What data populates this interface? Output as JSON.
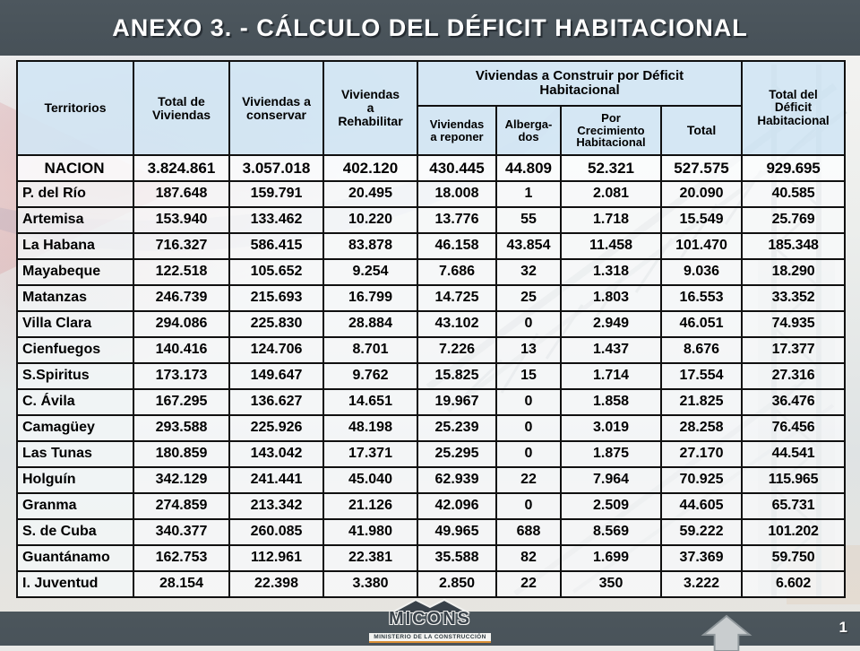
{
  "slide": {
    "title": "ANEXO 3. - CÁLCULO DEL DÉFICIT HABITACIONAL",
    "page_number": "1"
  },
  "footer_logo": {
    "name": "MICONS",
    "subtitle": "MINISTERIO DE LA CONSTRUCCIÓN"
  },
  "colors": {
    "band": "#49535a",
    "header_cell": "#d2e6f4",
    "accent_orange": "#d98f35",
    "title_text": "#ffffff"
  },
  "table": {
    "headers": {
      "territorios": "Territorios",
      "total_de_viviendas": "Total de\nViviendas",
      "viviendas_a_conservar": "Viviendas  a\nconservar",
      "viviendas_a_rehabilitar": "Viviendas\na\nRehabilitar",
      "construir_group": "Viviendas a Construir por Déficit\nHabitacional",
      "viviendas_a_reponer": "Viviendas\na reponer",
      "albergados": "Alberga-\ndos",
      "por_crecimiento": "Por\nCrecimiento\nHabitacional",
      "total": "Total",
      "total_del_deficit": "Total del\nDéficit\nHabitacional"
    },
    "rows": [
      {
        "territory": "NACION",
        "values": [
          "3.824.861",
          "3.057.018",
          "402.120",
          "430.445",
          "44.809",
          "52.321",
          "527.575",
          "929.695"
        ]
      },
      {
        "territory": "P. del Río",
        "values": [
          "187.648",
          "159.791",
          "20.495",
          "18.008",
          "1",
          "2.081",
          "20.090",
          "40.585"
        ]
      },
      {
        "territory": "Artemisa",
        "values": [
          "153.940",
          "133.462",
          "10.220",
          "13.776",
          "55",
          "1.718",
          "15.549",
          "25.769"
        ]
      },
      {
        "territory": "La Habana",
        "values": [
          "716.327",
          "586.415",
          "83.878",
          "46.158",
          "43.854",
          "11.458",
          "101.470",
          "185.348"
        ]
      },
      {
        "territory": "Mayabeque",
        "values": [
          "122.518",
          "105.652",
          "9.254",
          "7.686",
          "32",
          "1.318",
          "9.036",
          "18.290"
        ]
      },
      {
        "territory": "Matanzas",
        "values": [
          "246.739",
          "215.693",
          "16.799",
          "14.725",
          "25",
          "1.803",
          "16.553",
          "33.352"
        ]
      },
      {
        "territory": "Villa Clara",
        "values": [
          "294.086",
          "225.830",
          "28.884",
          "43.102",
          "0",
          "2.949",
          "46.051",
          "74.935"
        ]
      },
      {
        "territory": "Cienfuegos",
        "values": [
          "140.416",
          "124.706",
          "8.701",
          "7.226",
          "13",
          "1.437",
          "8.676",
          "17.377"
        ]
      },
      {
        "territory": "S.Spiritus",
        "values": [
          "173.173",
          "149.647",
          "9.762",
          "15.825",
          "15",
          "1.714",
          "17.554",
          "27.316"
        ]
      },
      {
        "territory": "C. Ávila",
        "values": [
          "167.295",
          "136.627",
          "14.651",
          "19.967",
          "0",
          "1.858",
          "21.825",
          "36.476"
        ]
      },
      {
        "territory": "Camagüey",
        "values": [
          "293.588",
          "225.926",
          "48.198",
          "25.239",
          "0",
          "3.019",
          "28.258",
          "76.456"
        ]
      },
      {
        "territory": "Las Tunas",
        "values": [
          "180.859",
          "143.042",
          "17.371",
          "25.295",
          "0",
          "1.875",
          "27.170",
          "44.541"
        ]
      },
      {
        "territory": "Holguín",
        "values": [
          "342.129",
          "241.441",
          "45.040",
          "62.939",
          "22",
          "7.964",
          "70.925",
          "115.965"
        ]
      },
      {
        "territory": "Granma",
        "values": [
          "274.859",
          "213.342",
          "21.126",
          "42.096",
          "0",
          "2.509",
          "44.605",
          "65.731"
        ]
      },
      {
        "territory": "S. de Cuba",
        "values": [
          "340.377",
          "260.085",
          "41.980",
          "49.965",
          "688",
          "8.569",
          "59.222",
          "101.202"
        ]
      },
      {
        "territory": "Guantánamo",
        "values": [
          "162.753",
          "112.961",
          "22.381",
          "35.588",
          "82",
          "1.699",
          "37.369",
          "59.750"
        ]
      },
      {
        "territory": "I. Juventud",
        "values": [
          "28.154",
          "22.398",
          "3.380",
          "2.850",
          "22",
          "350",
          "3.222",
          "6.602"
        ]
      }
    ]
  }
}
